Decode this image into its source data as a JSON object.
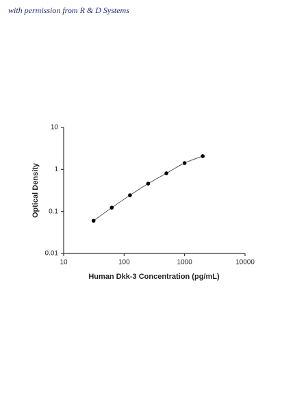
{
  "chart_data": {
    "type": "scatter",
    "annotation": "with permission from R & D Systems",
    "xlabel": "Human Dkk-3 Concentration (pg/mL)",
    "ylabel": "Optical Density",
    "x": [
      31.25,
      62.5,
      125,
      250,
      500,
      1000,
      2000
    ],
    "values": [
      0.06,
      0.123,
      0.243,
      0.46,
      0.81,
      1.42,
      2.07
    ],
    "color": "#000000",
    "xlim": [
      10,
      10000
    ],
    "xticks": [
      10,
      100,
      1000,
      10000
    ],
    "ylim": [
      0.01,
      10
    ],
    "yticks": [
      0.01,
      0.1,
      1,
      10
    ],
    "xlog": true,
    "ylog": true,
    "fit_curve": true
  }
}
